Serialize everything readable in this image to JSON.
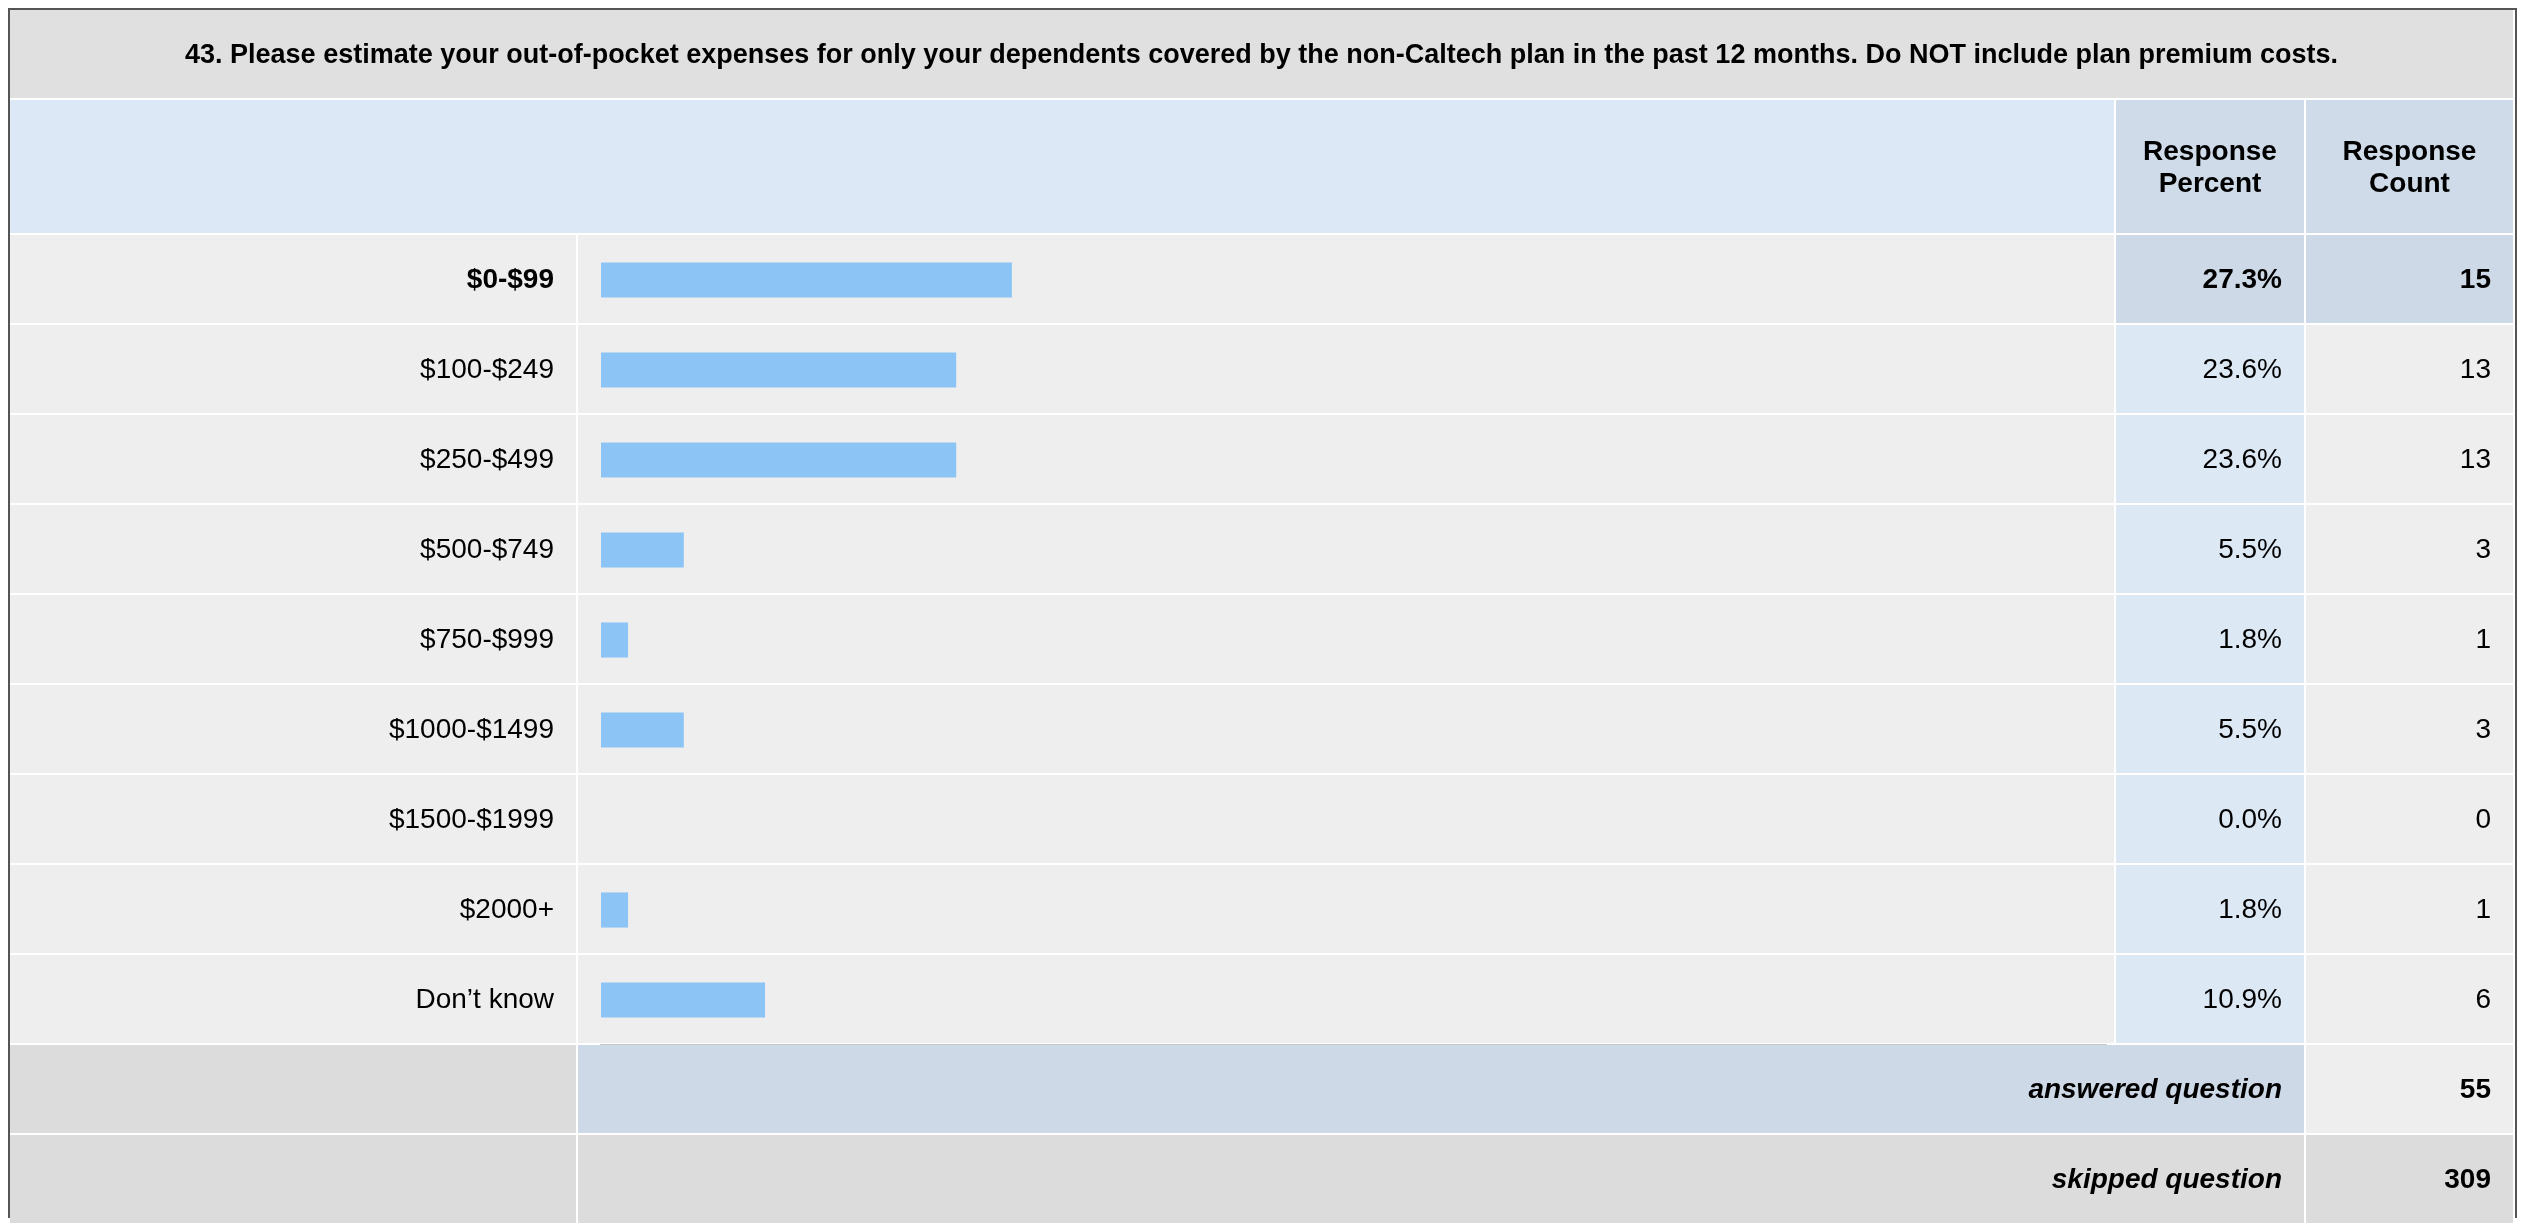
{
  "chart_data": {
    "type": "bar",
    "orientation": "horizontal",
    "title": "43. Please estimate your out-of-pocket expenses for only your dependents covered by the non-Caltech plan in the past 12 months. Do NOT include plan premium costs.",
    "categories": [
      "$0-$99",
      "$100-$249",
      "$250-$499",
      "$500-$749",
      "$750-$999",
      "$1000-$1499",
      "$1500-$1999",
      "$2000+",
      "Don’t know"
    ],
    "values": [
      27.3,
      23.6,
      23.6,
      5.5,
      1.8,
      5.5,
      0.0,
      1.8,
      10.9
    ],
    "value_labels": [
      "27.3%",
      "23.6%",
      "23.6%",
      "5.5%",
      "1.8%",
      "5.5%",
      "0.0%",
      "1.8%",
      "10.9%"
    ],
    "color": "#8cc4f5",
    "xlim": [
      0,
      100
    ],
    "tick_labels": false,
    "legend": false,
    "annotations": [
      "Response Percent",
      "Response Count",
      "15",
      "13",
      "13",
      "3",
      "1",
      "3",
      "0",
      "1",
      "6",
      "answered question",
      "55",
      "skipped question",
      "309"
    ]
  }
}
